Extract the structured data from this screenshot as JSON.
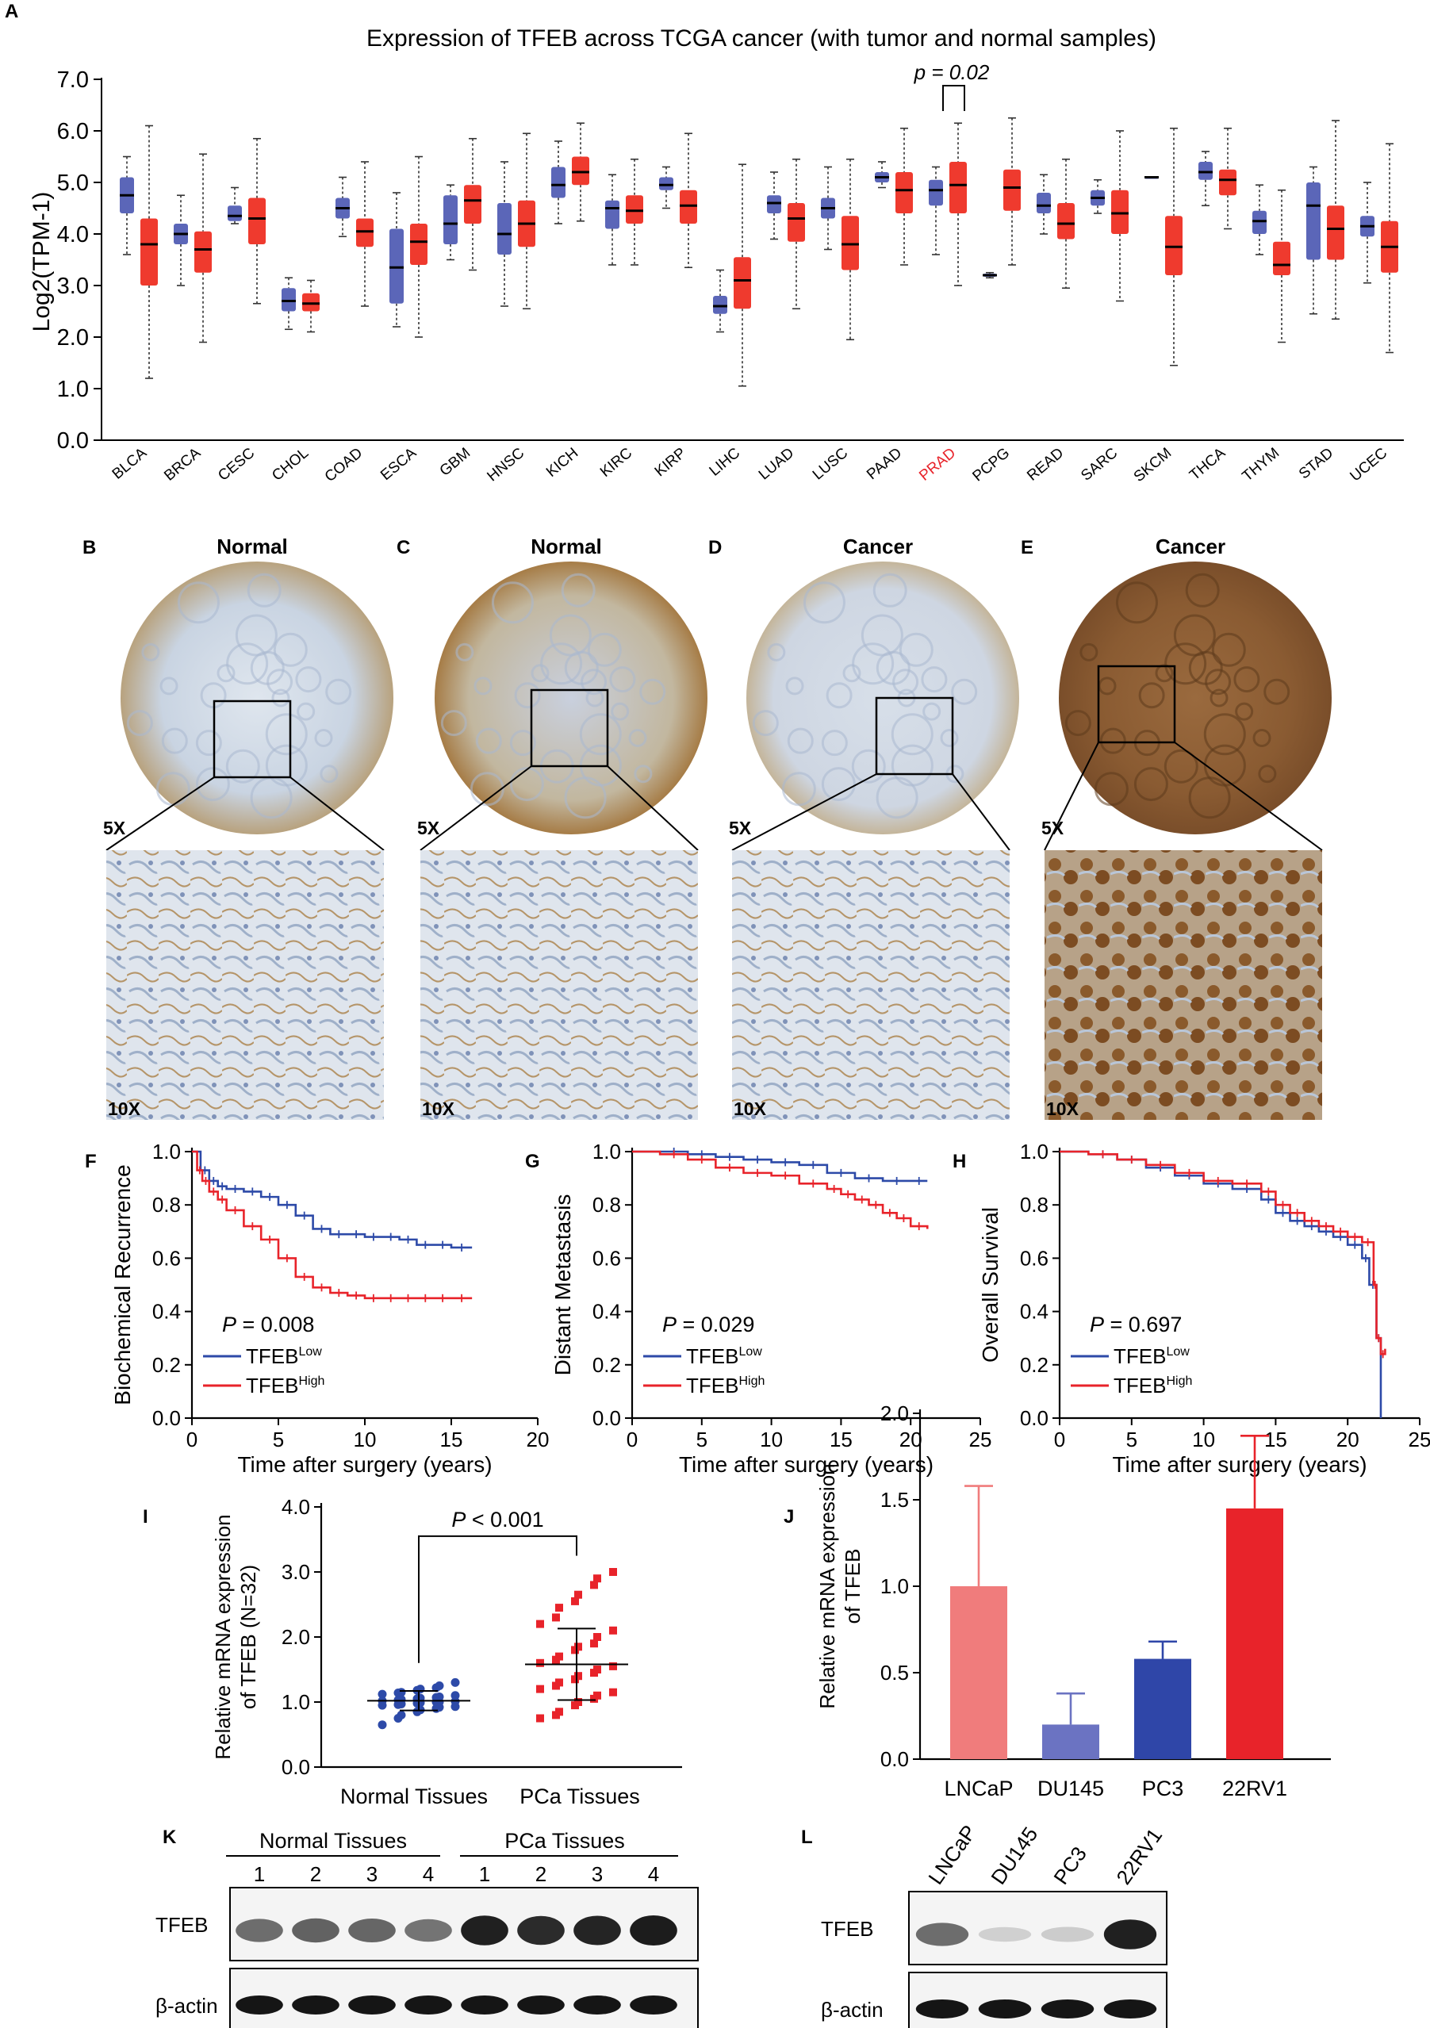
{
  "colors": {
    "normal": "#5b66b8",
    "tumor": "#ef3a2e",
    "low": "#2d4aa8",
    "high": "#e8232a",
    "prad": "#e8232a"
  },
  "panels": {
    "A": "A",
    "B": "B",
    "C": "C",
    "D": "D",
    "E": "E",
    "F": "F",
    "G": "G",
    "H": "H",
    "I": "I",
    "J": "J",
    "K": "K",
    "L": "L"
  },
  "ihc": {
    "titles": [
      "Normal",
      "Normal",
      "Cancer",
      "Cancer"
    ],
    "mag_low": "5X",
    "mag_high": "10X"
  },
  "chart_data": [
    {
      "id": "A",
      "type": "box",
      "title": "Expression of TFEB across TCGA cancer (with tumor and normal samples)",
      "ylabel": "Log2(TPM-1)",
      "ylim": [
        0,
        7
      ],
      "yticks": [
        "0.0",
        "1.0",
        "2.0",
        "3.0",
        "4.0",
        "5.0",
        "6.0",
        "7.0"
      ],
      "highlight": "PRAD",
      "annotation": "p = 0.02",
      "categories": [
        "BLCA",
        "BRCA",
        "CESC",
        "CHOL",
        "COAD",
        "ESCA",
        "GBM",
        "HNSC",
        "KICH",
        "KIRC",
        "KIRP",
        "LIHC",
        "LUAD",
        "LUSC",
        "PAAD",
        "PRAD",
        "PCPG",
        "READ",
        "SARC",
        "SKCM",
        "THCA",
        "THYM",
        "STAD",
        "UCEC"
      ],
      "series": [
        {
          "name": "Normal",
          "boxes": [
            [
              3.6,
              4.4,
              4.75,
              5.1,
              5.5
            ],
            [
              3.0,
              3.8,
              4.0,
              4.2,
              4.75
            ],
            [
              4.2,
              4.25,
              4.35,
              4.55,
              4.9
            ],
            [
              2.15,
              2.5,
              2.7,
              2.95,
              3.15
            ],
            [
              3.95,
              4.3,
              4.5,
              4.7,
              5.1
            ],
            [
              2.2,
              2.65,
              3.35,
              4.1,
              4.8
            ],
            [
              3.5,
              3.8,
              4.2,
              4.75,
              4.95
            ],
            [
              2.6,
              3.6,
              4.0,
              4.6,
              5.4
            ],
            [
              4.2,
              4.7,
              4.95,
              5.3,
              5.8
            ],
            [
              3.4,
              4.1,
              4.5,
              4.65,
              5.15
            ],
            [
              4.5,
              4.85,
              4.95,
              5.1,
              5.3
            ],
            [
              2.1,
              2.45,
              2.6,
              2.8,
              3.3
            ],
            [
              3.9,
              4.4,
              4.6,
              4.75,
              5.2
            ],
            [
              3.7,
              4.3,
              4.5,
              4.7,
              5.3
            ],
            [
              4.9,
              5.0,
              5.1,
              5.2,
              5.4
            ],
            [
              3.6,
              4.55,
              4.85,
              5.05,
              5.3
            ],
            [
              3.15,
              3.17,
              3.2,
              3.23,
              3.25
            ],
            [
              4.0,
              4.4,
              4.55,
              4.8,
              5.15
            ],
            [
              4.4,
              4.55,
              4.7,
              4.85,
              5.05
            ],
            [
              5.1,
              5.1,
              5.1,
              5.1,
              5.1
            ],
            [
              4.55,
              5.05,
              5.2,
              5.4,
              5.6
            ],
            [
              3.6,
              4.0,
              4.25,
              4.45,
              4.95
            ],
            [
              2.45,
              3.5,
              4.55,
              5.0,
              5.3
            ],
            [
              3.05,
              3.95,
              4.15,
              4.35,
              5.0
            ]
          ]
        },
        {
          "name": "Tumor",
          "boxes": [
            [
              1.2,
              3.0,
              3.8,
              4.3,
              6.1
            ],
            [
              1.9,
              3.25,
              3.7,
              4.05,
              5.55
            ],
            [
              2.65,
              3.8,
              4.3,
              4.7,
              5.85
            ],
            [
              2.1,
              2.5,
              2.65,
              2.85,
              3.1
            ],
            [
              2.6,
              3.75,
              4.05,
              4.3,
              5.4
            ],
            [
              2.0,
              3.4,
              3.85,
              4.2,
              5.5
            ],
            [
              3.3,
              4.2,
              4.65,
              4.95,
              5.85
            ],
            [
              2.55,
              3.75,
              4.2,
              4.65,
              5.95
            ],
            [
              4.25,
              4.95,
              5.2,
              5.5,
              6.15
            ],
            [
              3.4,
              4.2,
              4.45,
              4.75,
              5.45
            ],
            [
              3.35,
              4.2,
              4.55,
              4.85,
              5.95
            ],
            [
              1.05,
              2.55,
              3.1,
              3.55,
              5.35
            ],
            [
              2.55,
              3.85,
              4.3,
              4.6,
              5.45
            ],
            [
              1.95,
              3.3,
              3.8,
              4.35,
              5.45
            ],
            [
              3.4,
              4.4,
              4.85,
              5.2,
              6.05
            ],
            [
              3.0,
              4.4,
              4.95,
              5.4,
              6.15
            ],
            [
              3.4,
              4.45,
              4.9,
              5.25,
              6.25
            ],
            [
              2.95,
              3.9,
              4.2,
              4.6,
              5.45
            ],
            [
              2.7,
              4.0,
              4.4,
              4.85,
              6.0
            ],
            [
              1.45,
              3.2,
              3.75,
              4.35,
              6.05
            ],
            [
              4.1,
              4.75,
              5.05,
              5.25,
              6.05
            ],
            [
              1.9,
              3.2,
              3.4,
              3.85,
              4.85
            ],
            [
              2.35,
              3.5,
              4.1,
              4.55,
              6.2
            ],
            [
              1.7,
              3.25,
              3.75,
              4.25,
              5.75
            ]
          ]
        }
      ]
    },
    {
      "id": "F",
      "type": "line",
      "ylabel": "Biochemical Recurrence",
      "xlabel": "Time after surgery (years)",
      "xlim": [
        0,
        20
      ],
      "ylim": [
        0,
        1
      ],
      "xticks": [
        "0",
        "5",
        "10",
        "15",
        "20"
      ],
      "yticks": [
        "0.0",
        "0.2",
        "0.4",
        "0.6",
        "0.8",
        "1.0"
      ],
      "pvalue_label": "P",
      "pvalue": "= 0.008",
      "series": [
        {
          "name": "TFEB",
          "sup": "Low",
          "x": [
            0,
            0.5,
            1,
            1.5,
            2,
            3,
            4,
            5,
            6,
            7,
            8,
            9,
            10,
            11,
            12,
            13,
            14,
            15,
            16.2
          ],
          "y": [
            1.0,
            0.93,
            0.89,
            0.87,
            0.86,
            0.85,
            0.83,
            0.8,
            0.76,
            0.71,
            0.69,
            0.69,
            0.68,
            0.68,
            0.67,
            0.65,
            0.65,
            0.64,
            0.64
          ]
        },
        {
          "name": "TFEB",
          "sup": "High",
          "x": [
            0,
            0.3,
            0.6,
            1,
            1.5,
            2,
            3,
            4,
            5,
            6,
            7,
            8,
            9,
            10,
            11,
            12,
            13,
            14,
            15,
            16.2
          ],
          "y": [
            1.0,
            0.93,
            0.89,
            0.85,
            0.82,
            0.78,
            0.72,
            0.67,
            0.6,
            0.53,
            0.49,
            0.47,
            0.46,
            0.45,
            0.45,
            0.45,
            0.45,
            0.45,
            0.45,
            0.45
          ]
        }
      ]
    },
    {
      "id": "G",
      "type": "line",
      "ylabel": "Distant Metastasis",
      "xlabel": "Time after surgery (years)",
      "xlim": [
        0,
        25
      ],
      "ylim": [
        0,
        1
      ],
      "xticks": [
        "0",
        "5",
        "10",
        "15",
        "20",
        "25"
      ],
      "yticks": [
        "0.0",
        "0.2",
        "0.4",
        "0.6",
        "0.8",
        "1.0"
      ],
      "pvalue_label": "P",
      "pvalue": "= 0.029",
      "series": [
        {
          "name": "TFEB",
          "sup": "Low",
          "x": [
            0,
            2,
            4,
            6,
            8,
            10,
            12,
            14,
            16,
            18,
            20,
            21.2
          ],
          "y": [
            1.0,
            1.0,
            0.99,
            0.98,
            0.97,
            0.96,
            0.95,
            0.92,
            0.9,
            0.89,
            0.89,
            0.89
          ]
        },
        {
          "name": "TFEB",
          "sup": "High",
          "x": [
            0,
            2,
            4,
            6,
            8,
            10,
            12,
            14,
            15,
            16,
            17,
            18,
            19,
            20,
            21.2
          ],
          "y": [
            1.0,
            0.99,
            0.97,
            0.94,
            0.92,
            0.91,
            0.88,
            0.86,
            0.84,
            0.82,
            0.8,
            0.77,
            0.75,
            0.72,
            0.71
          ]
        }
      ]
    },
    {
      "id": "H",
      "type": "line",
      "ylabel": "Overall Survival",
      "xlabel": "Time after surgery (years)",
      "xlim": [
        0,
        25
      ],
      "ylim": [
        0,
        1
      ],
      "xticks": [
        "0",
        "5",
        "10",
        "15",
        "20",
        "25"
      ],
      "yticks": [
        "0.0",
        "0.2",
        "0.4",
        "0.6",
        "0.8",
        "1.0"
      ],
      "pvalue_label": "P",
      "pvalue": "= 0.697",
      "series": [
        {
          "name": "TFEB",
          "sup": "Low",
          "x": [
            0,
            2,
            4,
            6,
            8,
            10,
            12,
            14,
            15,
            16,
            17,
            18,
            19,
            20,
            21,
            21.5,
            22,
            22.3
          ],
          "y": [
            1.0,
            0.99,
            0.97,
            0.94,
            0.91,
            0.88,
            0.86,
            0.82,
            0.77,
            0.74,
            0.72,
            0.7,
            0.68,
            0.65,
            0.6,
            0.5,
            0.3,
            0.0
          ]
        },
        {
          "name": "TFEB",
          "sup": "High",
          "x": [
            0,
            2,
            4,
            6,
            8,
            10,
            12,
            14,
            15,
            16,
            17,
            18,
            19,
            20,
            21,
            21.8,
            22,
            22.3,
            22.6
          ],
          "y": [
            1.0,
            0.99,
            0.97,
            0.95,
            0.92,
            0.89,
            0.88,
            0.85,
            0.8,
            0.77,
            0.74,
            0.72,
            0.7,
            0.68,
            0.66,
            0.5,
            0.3,
            0.24,
            0.26
          ]
        }
      ]
    },
    {
      "id": "I",
      "type": "scatter",
      "ylabel": "Relative mRNA expression of TFEB (N=32)",
      "ylabel_lines": [
        "Relative mRNA expression",
        "of TFEB (N=32)"
      ],
      "ylim": [
        0,
        4
      ],
      "yticks": [
        "0.0",
        "1.0",
        "2.0",
        "3.0",
        "4.0"
      ],
      "categories": [
        "Normal Tissues",
        "PCa Tissues"
      ],
      "annotation_label": "P",
      "annotation": "< 0.001",
      "series": [
        {
          "name": "Normal Tissues",
          "mean": 1.02,
          "sd": 0.15,
          "values": [
            0.65,
            0.75,
            0.8,
            0.85,
            0.88,
            0.9,
            0.92,
            0.93,
            0.95,
            0.96,
            0.97,
            0.98,
            0.99,
            1.0,
            1.0,
            1.01,
            1.02,
            1.03,
            1.04,
            1.05,
            1.06,
            1.07,
            1.08,
            1.1,
            1.12,
            1.14,
            1.15,
            1.18,
            1.2,
            1.22,
            1.25,
            1.3
          ]
        },
        {
          "name": "PCa Tissues",
          "mean": 1.58,
          "sd": 0.55,
          "values": [
            0.75,
            0.8,
            0.85,
            0.95,
            1.0,
            1.05,
            1.1,
            1.15,
            1.2,
            1.25,
            1.3,
            1.35,
            1.4,
            1.45,
            1.5,
            1.55,
            1.6,
            1.65,
            1.7,
            1.8,
            1.85,
            1.9,
            2.0,
            2.1,
            2.2,
            2.3,
            2.45,
            2.55,
            2.65,
            2.8,
            2.9,
            3.0
          ]
        }
      ]
    },
    {
      "id": "J",
      "type": "bar",
      "ylabel": "Relative mRNA expression of TFEB",
      "ylabel_lines": [
        "Relative mRNA expression",
        "of TFEB"
      ],
      "ylim": [
        0,
        2
      ],
      "yticks": [
        "0.0",
        "0.5",
        "1.0",
        "1.5",
        "2.0"
      ],
      "categories": [
        "LNCaP",
        "DU145",
        "PC3",
        "22RV1"
      ],
      "values": [
        1.0,
        0.2,
        0.58,
        1.45
      ],
      "errors": [
        0.58,
        0.18,
        0.1,
        0.42
      ],
      "bar_colors": [
        "#f07c7c",
        "#6b73c2",
        "#2f46a8",
        "#e8232a"
      ]
    }
  ],
  "blots": {
    "K": {
      "groups": [
        "Normal Tissues",
        "PCa Tissues"
      ],
      "lanes": [
        "1",
        "2",
        "3",
        "4",
        "1",
        "2",
        "3",
        "4"
      ],
      "rows": [
        "TFEB",
        "β-actin"
      ],
      "tfeb_intensity": [
        0.55,
        0.6,
        0.58,
        0.52,
        0.9,
        0.85,
        0.88,
        0.92
      ]
    },
    "L": {
      "lanes": [
        "LNCaP",
        "DU145",
        "PC3",
        "22RV1"
      ],
      "rows": [
        "TFEB",
        "β-actin"
      ],
      "tfeb_intensity": [
        0.55,
        0.1,
        0.12,
        0.9
      ]
    }
  }
}
